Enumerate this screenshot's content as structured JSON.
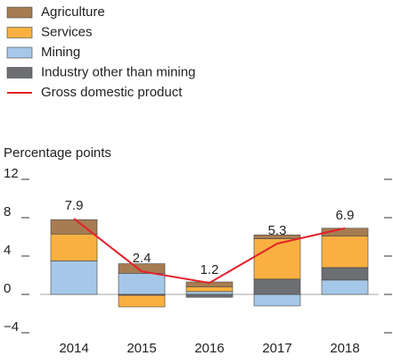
{
  "chart_data": {
    "type": "stacked_bar_line",
    "ylabel": "Percentage points",
    "categories": [
      "2014",
      "2015",
      "2016",
      "2017",
      "2018"
    ],
    "series": [
      {
        "name": "Agriculture",
        "color": "#a77c52",
        "values": [
          1.5,
          1.0,
          0.5,
          0.4,
          0.8
        ]
      },
      {
        "name": "Services",
        "color": "#f9b040",
        "values": [
          2.8,
          -1.2,
          0.5,
          4.2,
          3.3
        ]
      },
      {
        "name": "Mining",
        "color": "#a6c8e8",
        "values": [
          3.5,
          2.2,
          0.3,
          -1.2,
          1.5
        ]
      },
      {
        "name": "Industry other than mining",
        "color": "#6d6e71",
        "values": [
          0,
          -0.1,
          -0.3,
          1.6,
          1.3
        ]
      },
      {
        "name": "Gross domestic product",
        "color": "#e3202a",
        "type": "line",
        "values": [
          7.9,
          2.4,
          1.2,
          5.3,
          6.9
        ]
      }
    ],
    "ylim": [
      -4,
      12
    ],
    "yticks": [
      {
        "value": -4,
        "label": "−4"
      },
      0,
      4,
      8,
      12
    ]
  }
}
